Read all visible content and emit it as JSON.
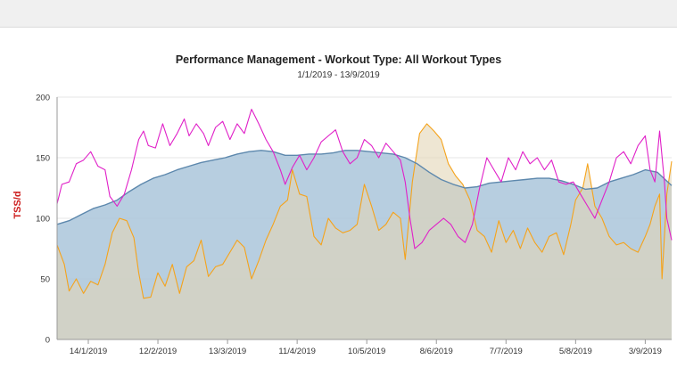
{
  "chart_data": {
    "type": "area",
    "title": "Performance Management - Workout Type: All Workout Types",
    "subtitle": "1/1/2019 - 13/9/2019",
    "xlabel": "",
    "ylabel": "TSS/d",
    "ylim": [
      0,
      200
    ],
    "yticks": [
      0,
      50,
      100,
      150,
      200
    ],
    "xlim_days": [
      0,
      256
    ],
    "xticks": [
      {
        "label": "14/1/2019",
        "day": 13
      },
      {
        "label": "12/2/2019",
        "day": 42
      },
      {
        "label": "13/3/2019",
        "day": 71
      },
      {
        "label": "11/4/2019",
        "day": 100
      },
      {
        "label": "10/5/2019",
        "day": 129
      },
      {
        "label": "8/6/2019",
        "day": 158
      },
      {
        "label": "7/7/2019",
        "day": 187
      },
      {
        "label": "5/8/2019",
        "day": 216
      },
      {
        "label": "3/9/2019",
        "day": 245
      }
    ],
    "grid": true,
    "colors": {
      "fitness": "#5d88ad",
      "fitness_fill": "#aac5da",
      "fatigue": "#e020c8",
      "form": "#f5a31b",
      "form_fill": "#e3d6b6"
    },
    "series": [
      {
        "key": "fitness",
        "points": [
          [
            0,
            95
          ],
          [
            5,
            98
          ],
          [
            10,
            103
          ],
          [
            15,
            108
          ],
          [
            20,
            111
          ],
          [
            25,
            115
          ],
          [
            30,
            122
          ],
          [
            35,
            128
          ],
          [
            40,
            133
          ],
          [
            45,
            136
          ],
          [
            50,
            140
          ],
          [
            55,
            143
          ],
          [
            60,
            146
          ],
          [
            65,
            148
          ],
          [
            70,
            150
          ],
          [
            75,
            153
          ],
          [
            80,
            155
          ],
          [
            85,
            156
          ],
          [
            90,
            155
          ],
          [
            95,
            152
          ],
          [
            100,
            152
          ],
          [
            105,
            153
          ],
          [
            110,
            153
          ],
          [
            115,
            154
          ],
          [
            120,
            156
          ],
          [
            125,
            156
          ],
          [
            130,
            155
          ],
          [
            135,
            154
          ],
          [
            140,
            153
          ],
          [
            145,
            150
          ],
          [
            150,
            145
          ],
          [
            155,
            138
          ],
          [
            160,
            132
          ],
          [
            165,
            128
          ],
          [
            170,
            125
          ],
          [
            175,
            126
          ],
          [
            180,
            129
          ],
          [
            185,
            130
          ],
          [
            190,
            131
          ],
          [
            195,
            132
          ],
          [
            200,
            133
          ],
          [
            205,
            133
          ],
          [
            210,
            131
          ],
          [
            215,
            128
          ],
          [
            220,
            124
          ],
          [
            225,
            125
          ],
          [
            230,
            130
          ],
          [
            235,
            133
          ],
          [
            240,
            136
          ],
          [
            245,
            140
          ],
          [
            250,
            138
          ],
          [
            256,
            127
          ]
        ]
      },
      {
        "key": "fatigue",
        "points": [
          [
            0,
            112
          ],
          [
            2,
            128
          ],
          [
            5,
            130
          ],
          [
            8,
            145
          ],
          [
            11,
            148
          ],
          [
            14,
            155
          ],
          [
            17,
            143
          ],
          [
            20,
            140
          ],
          [
            22,
            118
          ],
          [
            25,
            110
          ],
          [
            28,
            120
          ],
          [
            31,
            140
          ],
          [
            34,
            165
          ],
          [
            36,
            172
          ],
          [
            38,
            160
          ],
          [
            41,
            158
          ],
          [
            44,
            178
          ],
          [
            47,
            160
          ],
          [
            50,
            170
          ],
          [
            53,
            182
          ],
          [
            55,
            168
          ],
          [
            58,
            178
          ],
          [
            61,
            170
          ],
          [
            63,
            160
          ],
          [
            66,
            175
          ],
          [
            69,
            180
          ],
          [
            72,
            165
          ],
          [
            75,
            178
          ],
          [
            78,
            170
          ],
          [
            81,
            190
          ],
          [
            84,
            178
          ],
          [
            87,
            165
          ],
          [
            90,
            155
          ],
          [
            93,
            140
          ],
          [
            95,
            128
          ],
          [
            98,
            142
          ],
          [
            101,
            152
          ],
          [
            104,
            140
          ],
          [
            107,
            150
          ],
          [
            110,
            163
          ],
          [
            113,
            168
          ],
          [
            116,
            173
          ],
          [
            119,
            155
          ],
          [
            122,
            145
          ],
          [
            125,
            150
          ],
          [
            128,
            165
          ],
          [
            131,
            160
          ],
          [
            134,
            150
          ],
          [
            137,
            162
          ],
          [
            140,
            155
          ],
          [
            143,
            148
          ],
          [
            145,
            130
          ],
          [
            147,
            100
          ],
          [
            149,
            75
          ],
          [
            152,
            80
          ],
          [
            155,
            90
          ],
          [
            158,
            95
          ],
          [
            161,
            100
          ],
          [
            164,
            95
          ],
          [
            167,
            85
          ],
          [
            170,
            80
          ],
          [
            173,
            95
          ],
          [
            176,
            125
          ],
          [
            179,
            150
          ],
          [
            182,
            140
          ],
          [
            185,
            130
          ],
          [
            188,
            150
          ],
          [
            191,
            140
          ],
          [
            194,
            155
          ],
          [
            197,
            145
          ],
          [
            200,
            150
          ],
          [
            203,
            140
          ],
          [
            206,
            148
          ],
          [
            209,
            130
          ],
          [
            212,
            128
          ],
          [
            215,
            130
          ],
          [
            218,
            120
          ],
          [
            221,
            110
          ],
          [
            224,
            100
          ],
          [
            227,
            115
          ],
          [
            230,
            130
          ],
          [
            233,
            150
          ],
          [
            236,
            155
          ],
          [
            239,
            145
          ],
          [
            242,
            160
          ],
          [
            245,
            168
          ],
          [
            247,
            140
          ],
          [
            249,
            130
          ],
          [
            251,
            172
          ],
          [
            253,
            130
          ],
          [
            254,
            100
          ],
          [
            256,
            82
          ]
        ]
      },
      {
        "key": "form",
        "points": [
          [
            0,
            78
          ],
          [
            3,
            62
          ],
          [
            5,
            40
          ],
          [
            8,
            50
          ],
          [
            11,
            38
          ],
          [
            14,
            48
          ],
          [
            17,
            45
          ],
          [
            20,
            62
          ],
          [
            23,
            88
          ],
          [
            26,
            100
          ],
          [
            29,
            98
          ],
          [
            32,
            84
          ],
          [
            34,
            55
          ],
          [
            36,
            34
          ],
          [
            39,
            35
          ],
          [
            42,
            55
          ],
          [
            45,
            44
          ],
          [
            48,
            62
          ],
          [
            51,
            38
          ],
          [
            54,
            60
          ],
          [
            57,
            65
          ],
          [
            60,
            82
          ],
          [
            63,
            52
          ],
          [
            66,
            60
          ],
          [
            69,
            62
          ],
          [
            72,
            72
          ],
          [
            75,
            82
          ],
          [
            78,
            76
          ],
          [
            81,
            50
          ],
          [
            84,
            65
          ],
          [
            87,
            82
          ],
          [
            90,
            95
          ],
          [
            93,
            110
          ],
          [
            96,
            115
          ],
          [
            98,
            140
          ],
          [
            101,
            120
          ],
          [
            104,
            118
          ],
          [
            107,
            85
          ],
          [
            110,
            78
          ],
          [
            113,
            100
          ],
          [
            116,
            92
          ],
          [
            119,
            88
          ],
          [
            122,
            90
          ],
          [
            125,
            95
          ],
          [
            128,
            128
          ],
          [
            131,
            110
          ],
          [
            134,
            90
          ],
          [
            137,
            95
          ],
          [
            140,
            105
          ],
          [
            143,
            100
          ],
          [
            145,
            66
          ],
          [
            148,
            130
          ],
          [
            151,
            170
          ],
          [
            154,
            178
          ],
          [
            157,
            172
          ],
          [
            160,
            165
          ],
          [
            163,
            145
          ],
          [
            166,
            135
          ],
          [
            169,
            128
          ],
          [
            172,
            115
          ],
          [
            175,
            90
          ],
          [
            178,
            85
          ],
          [
            181,
            72
          ],
          [
            184,
            98
          ],
          [
            187,
            80
          ],
          [
            190,
            90
          ],
          [
            193,
            75
          ],
          [
            196,
            92
          ],
          [
            199,
            80
          ],
          [
            202,
            72
          ],
          [
            205,
            85
          ],
          [
            208,
            88
          ],
          [
            211,
            70
          ],
          [
            214,
            95
          ],
          [
            216,
            115
          ],
          [
            219,
            125
          ],
          [
            221,
            145
          ],
          [
            224,
            110
          ],
          [
            227,
            100
          ],
          [
            230,
            85
          ],
          [
            233,
            78
          ],
          [
            236,
            80
          ],
          [
            239,
            75
          ],
          [
            242,
            72
          ],
          [
            245,
            85
          ],
          [
            247,
            95
          ],
          [
            249,
            110
          ],
          [
            251,
            120
          ],
          [
            252,
            50
          ],
          [
            254,
            120
          ],
          [
            256,
            147
          ]
        ]
      }
    ]
  }
}
